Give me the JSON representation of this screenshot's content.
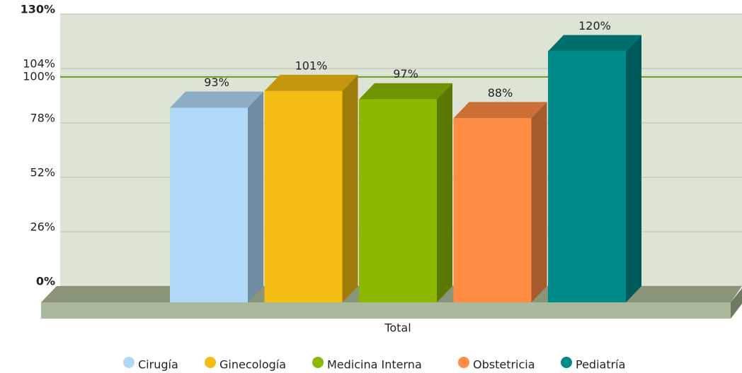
{
  "chart_data": {
    "type": "bar3d",
    "categories": [
      "Total"
    ],
    "series": [
      {
        "name": "Cirugía",
        "color": "#b0d8f7",
        "values": [
          93
        ],
        "value_labels": [
          "93%"
        ]
      },
      {
        "name": "Ginecología",
        "color": "#f5bd13",
        "values": [
          101
        ],
        "value_labels": [
          "101%"
        ]
      },
      {
        "name": "Medicina Interna",
        "color": "#8cb800",
        "values": [
          97
        ],
        "value_labels": [
          "97%"
        ]
      },
      {
        "name": "Obstetricia",
        "color": "#ff8c45",
        "values": [
          88
        ],
        "value_labels": [
          "88%"
        ]
      },
      {
        "name": "Pediatría",
        "color": "#008b8b",
        "values": [
          120
        ],
        "value_labels": [
          "120%"
        ]
      }
    ],
    "ylim": [
      0,
      130
    ],
    "yticks": [
      {
        "value": 0,
        "label": "0%"
      },
      {
        "value": 26,
        "label": "26%"
      },
      {
        "value": 52,
        "label": "52%"
      },
      {
        "value": 78,
        "label": "78%"
      },
      {
        "value": 104,
        "label": "104%"
      },
      {
        "value": 130,
        "label": "130%"
      }
    ],
    "reference_line": {
      "value": 100,
      "label": "100%",
      "color": "#6a9a1f"
    },
    "grid": true,
    "legend": "bottom"
  }
}
